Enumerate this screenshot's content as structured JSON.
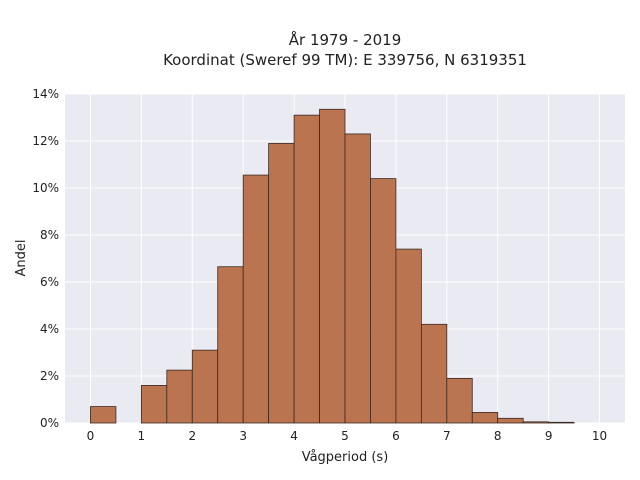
{
  "chart_data": {
    "type": "bar",
    "title": "År 1979 - 2019",
    "subtitle": "Koordinat (Sweref 99 TM): E 339756, N 6319351",
    "xlabel": "Vågperiod (s)",
    "ylabel": "Andel",
    "xlim": [
      -0.5,
      10.5
    ],
    "ylim": [
      0,
      14
    ],
    "grid": true,
    "bin_width": 0.5,
    "x_ticks": [
      0,
      1,
      2,
      3,
      4,
      5,
      6,
      7,
      8,
      9,
      10
    ],
    "y_ticks": [
      0,
      2,
      4,
      6,
      8,
      10,
      12,
      14
    ],
    "y_tick_labels": [
      "0%",
      "2%",
      "4%",
      "6%",
      "8%",
      "10%",
      "12%",
      "14%"
    ],
    "bins": [
      0,
      0.5,
      1,
      1.5,
      2,
      2.5,
      3,
      3.5,
      4,
      4.5,
      5,
      5.5,
      6,
      6.5,
      7,
      7.5,
      8,
      8.5,
      9,
      9.5
    ],
    "values": [
      0.7,
      0,
      1.6,
      2.25,
      3.1,
      6.65,
      10.55,
      11.9,
      13.1,
      13.35,
      12.3,
      10.4,
      7.4,
      4.2,
      1.9,
      0.45,
      0.2,
      0.05,
      0.03,
      0
    ],
    "colors": {
      "bar": "#b86e47",
      "bar_edge": "#3a2a22",
      "background": "#eaeaf2",
      "grid": "#ffffff"
    }
  }
}
